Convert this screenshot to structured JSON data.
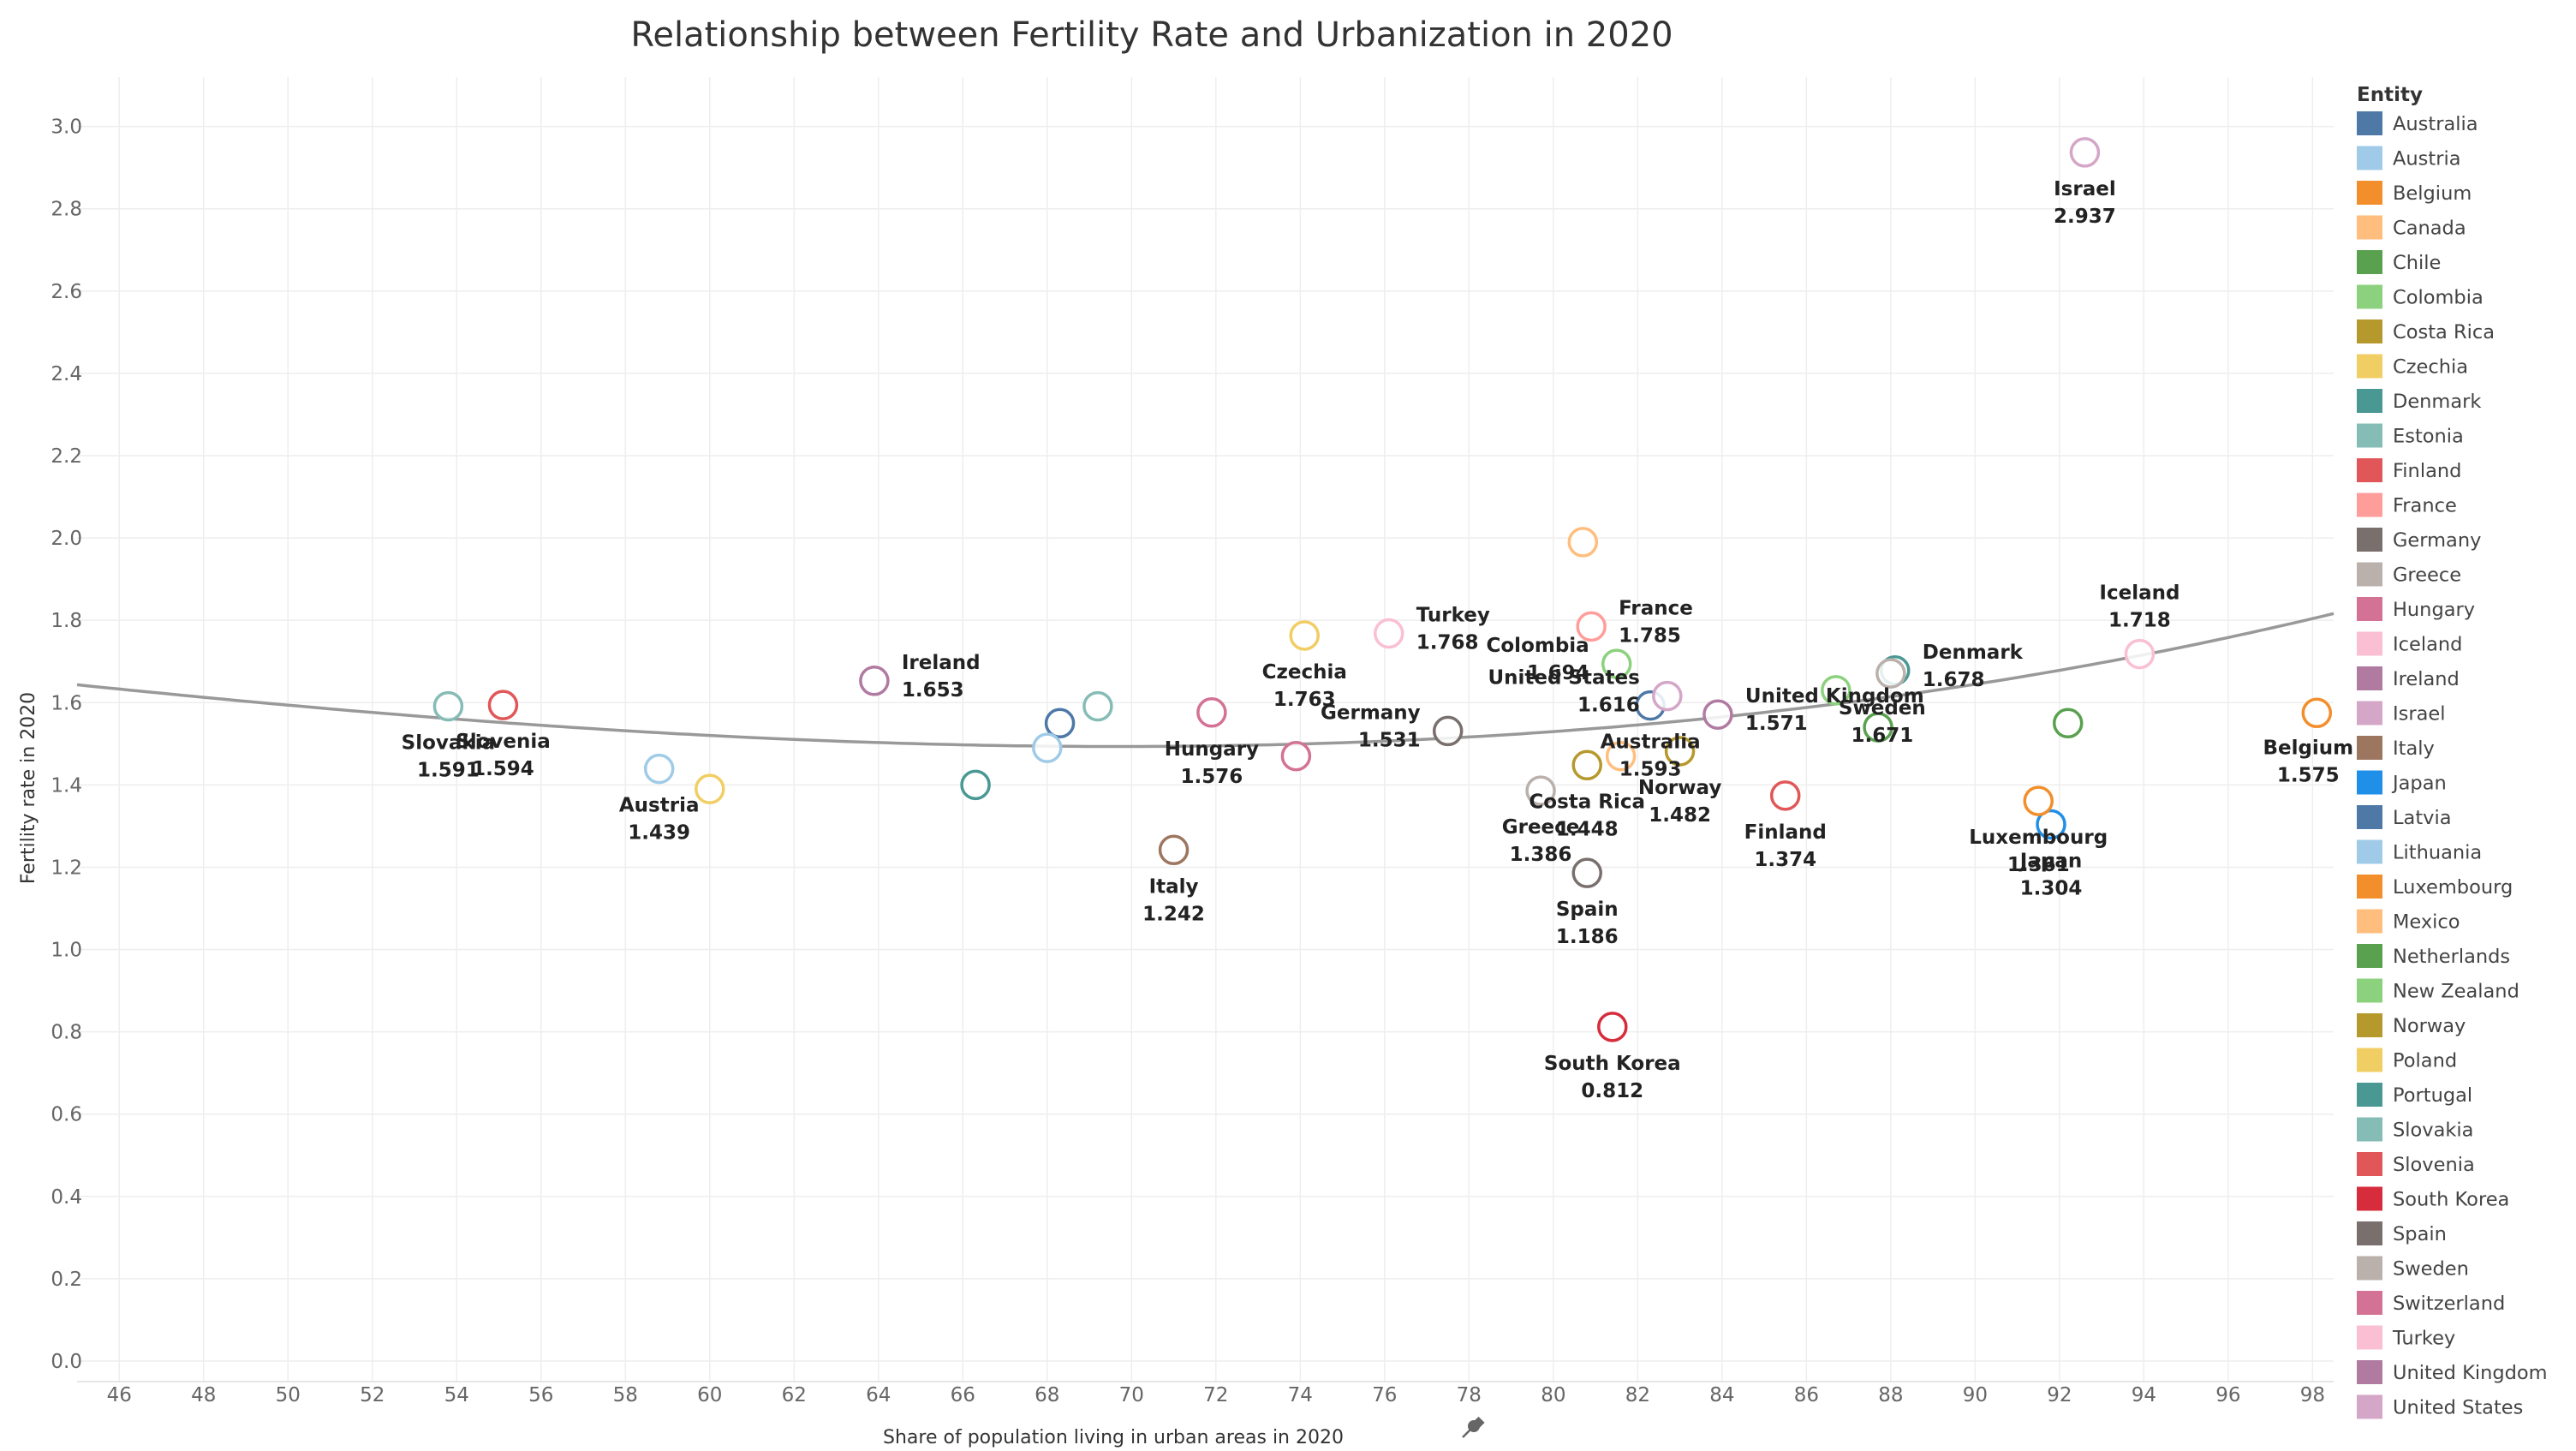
{
  "chart_data": {
    "type": "scatter",
    "title": "Relationship between Fertility Rate and Urbanization in 2020",
    "xlabel": "Share of population living in urban areas in 2020",
    "ylabel": "Fertility rate in 2020",
    "xlim": [
      45,
      98.5
    ],
    "ylim": [
      -0.05,
      3.12
    ],
    "xticks": [
      46,
      48,
      50,
      52,
      54,
      56,
      58,
      60,
      62,
      64,
      66,
      68,
      70,
      72,
      74,
      76,
      78,
      80,
      82,
      84,
      86,
      88,
      90,
      92,
      94,
      96,
      98
    ],
    "yticks": [
      0.0,
      0.2,
      0.4,
      0.6,
      0.8,
      1.0,
      1.2,
      1.4,
      1.6,
      1.8,
      2.0,
      2.2,
      2.4,
      2.6,
      2.8,
      3.0
    ],
    "grid": true,
    "trendline": {
      "type": "polynomial-cubic",
      "color": "#999999"
    },
    "legend": {
      "title": "Entity",
      "position": "right"
    },
    "points": [
      {
        "entity": "Australia",
        "x": 82.3,
        "y": 1.593,
        "color": "#4e79a7",
        "label": "Australia",
        "value_label": "1.593",
        "label_pos": "below"
      },
      {
        "entity": "Austria",
        "x": 58.8,
        "y": 1.439,
        "color": "#a0cbe8",
        "label": "Austria",
        "value_label": "1.439",
        "label_pos": "below"
      },
      {
        "entity": "Belgium",
        "x": 98.1,
        "y": 1.575,
        "color": "#f28e2b",
        "label": "Belgium",
        "value_label": "1.575",
        "label_pos": "below-left"
      },
      {
        "entity": "Canada",
        "x": 81.6,
        "y": 1.47,
        "color": "#ffbe7d",
        "label": "",
        "value_label": "",
        "label_pos": "none"
      },
      {
        "entity": "Chile",
        "x": 87.7,
        "y": 1.54,
        "color": "#59a14f",
        "label": "",
        "value_label": "",
        "label_pos": "none"
      },
      {
        "entity": "Colombia",
        "x": 81.5,
        "y": 1.694,
        "color": "#8cd17d",
        "label": "Colombia",
        "value_label": "1.694",
        "label_pos": "left"
      },
      {
        "entity": "Costa Rica",
        "x": 80.8,
        "y": 1.448,
        "color": "#b6992d",
        "label": "Costa Rica",
        "value_label": "1.448",
        "label_pos": "below"
      },
      {
        "entity": "Czechia",
        "x": 74.1,
        "y": 1.763,
        "color": "#f1ce63",
        "label": "Czechia",
        "value_label": "1.763",
        "label_pos": "below"
      },
      {
        "entity": "Denmark",
        "x": 88.1,
        "y": 1.678,
        "color": "#499894",
        "label": "Denmark",
        "value_label": "1.678",
        "label_pos": "right"
      },
      {
        "entity": "Estonia",
        "x": 69.2,
        "y": 1.591,
        "color": "#86bcb6",
        "label": "",
        "value_label": "",
        "label_pos": "none"
      },
      {
        "entity": "Finland",
        "x": 85.5,
        "y": 1.374,
        "color": "#e15759",
        "label": "Finland",
        "value_label": "1.374",
        "label_pos": "below"
      },
      {
        "entity": "France",
        "x": 80.9,
        "y": 1.785,
        "color": "#ff9d9a",
        "label": "France",
        "value_label": "1.785",
        "label_pos": "right"
      },
      {
        "entity": "Germany",
        "x": 77.5,
        "y": 1.531,
        "color": "#79706e",
        "label": "Germany",
        "value_label": "1.531",
        "label_pos": "left"
      },
      {
        "entity": "Greece",
        "x": 79.7,
        "y": 1.386,
        "color": "#bab0ac",
        "label": "Greece",
        "value_label": "1.386",
        "label_pos": "below"
      },
      {
        "entity": "Hungary",
        "x": 71.9,
        "y": 1.576,
        "color": "#d37295",
        "label": "Hungary",
        "value_label": "1.576",
        "label_pos": "below"
      },
      {
        "entity": "Iceland",
        "x": 93.9,
        "y": 1.718,
        "color": "#fabfd2",
        "label": "Iceland",
        "value_label": "1.718",
        "label_pos": "above"
      },
      {
        "entity": "Ireland",
        "x": 63.9,
        "y": 1.653,
        "color": "#b07aa1",
        "label": "Ireland",
        "value_label": "1.653",
        "label_pos": "right"
      },
      {
        "entity": "Israel",
        "x": 92.6,
        "y": 2.937,
        "color": "#d4a6c8",
        "label": "Israel",
        "value_label": "2.937",
        "label_pos": "below"
      },
      {
        "entity": "Italy",
        "x": 71.0,
        "y": 1.242,
        "color": "#9d7660",
        "label": "Italy",
        "value_label": "1.242",
        "label_pos": "below"
      },
      {
        "entity": "Japan",
        "x": 91.8,
        "y": 1.304,
        "color": "#1f8fe8",
        "label": "Japan",
        "value_label": "1.304",
        "label_pos": "below"
      },
      {
        "entity": "Latvia",
        "x": 68.3,
        "y": 1.55,
        "color": "#4e79a7",
        "label": "",
        "value_label": "",
        "label_pos": "none"
      },
      {
        "entity": "Lithuania",
        "x": 68.0,
        "y": 1.49,
        "color": "#a0cbe8",
        "label": "",
        "value_label": "",
        "label_pos": "none"
      },
      {
        "entity": "Luxembourg",
        "x": 91.5,
        "y": 1.361,
        "color": "#f28e2b",
        "label": "Luxembourg",
        "value_label": "1.361",
        "label_pos": "below"
      },
      {
        "entity": "Mexico",
        "x": 80.7,
        "y": 1.99,
        "color": "#ffbe7d",
        "label": "",
        "value_label": "",
        "label_pos": "none"
      },
      {
        "entity": "Netherlands",
        "x": 92.2,
        "y": 1.55,
        "color": "#59a14f",
        "label": "",
        "value_label": "",
        "label_pos": "none"
      },
      {
        "entity": "New Zealand",
        "x": 86.7,
        "y": 1.63,
        "color": "#8cd17d",
        "label": "",
        "value_label": "",
        "label_pos": "none"
      },
      {
        "entity": "Norway",
        "x": 83.0,
        "y": 1.482,
        "color": "#b6992d",
        "label": "Norway",
        "value_label": "1.482",
        "label_pos": "below"
      },
      {
        "entity": "Poland",
        "x": 60.0,
        "y": 1.39,
        "color": "#f1ce63",
        "label": "",
        "value_label": "",
        "label_pos": "none"
      },
      {
        "entity": "Portugal",
        "x": 66.3,
        "y": 1.4,
        "color": "#499894",
        "label": "",
        "value_label": "",
        "label_pos": "none"
      },
      {
        "entity": "Slovakia",
        "x": 53.8,
        "y": 1.591,
        "color": "#86bcb6",
        "label": "Slovakia",
        "value_label": "1.591",
        "label_pos": "below"
      },
      {
        "entity": "Slovenia",
        "x": 55.1,
        "y": 1.594,
        "color": "#e15759",
        "label": "Slovenia",
        "value_label": "1.594",
        "label_pos": "below"
      },
      {
        "entity": "South Korea",
        "x": 81.4,
        "y": 0.812,
        "color": "#d62c3c",
        "label": "South Korea",
        "value_label": "0.812",
        "label_pos": "below"
      },
      {
        "entity": "Spain",
        "x": 80.8,
        "y": 1.186,
        "color": "#79706e",
        "label": "Spain",
        "value_label": "1.186",
        "label_pos": "below"
      },
      {
        "entity": "Sweden",
        "x": 88.0,
        "y": 1.671,
        "color": "#bab0ac",
        "label": "Sweden",
        "value_label": "1.671",
        "label_pos": "below-left"
      },
      {
        "entity": "Switzerland",
        "x": 73.9,
        "y": 1.47,
        "color": "#d37295",
        "label": "",
        "value_label": "",
        "label_pos": "none"
      },
      {
        "entity": "Turkey",
        "x": 76.1,
        "y": 1.768,
        "color": "#fabfd2",
        "label": "Turkey",
        "value_label": "1.768",
        "label_pos": "right"
      },
      {
        "entity": "United Kingdom",
        "x": 83.9,
        "y": 1.571,
        "color": "#b07aa1",
        "label": "United Kingdom",
        "value_label": "1.571",
        "label_pos": "right"
      },
      {
        "entity": "United States",
        "x": 82.7,
        "y": 1.616,
        "color": "#d4a6c8",
        "label": "United States",
        "value_label": "1.616",
        "label_pos": "left"
      }
    ]
  },
  "legend_entries": [
    {
      "name": "Australia",
      "color": "#4e79a7"
    },
    {
      "name": "Austria",
      "color": "#a0cbe8"
    },
    {
      "name": "Belgium",
      "color": "#f28e2b"
    },
    {
      "name": "Canada",
      "color": "#ffbe7d"
    },
    {
      "name": "Chile",
      "color": "#59a14f"
    },
    {
      "name": "Colombia",
      "color": "#8cd17d"
    },
    {
      "name": "Costa Rica",
      "color": "#b6992d"
    },
    {
      "name": "Czechia",
      "color": "#f1ce63"
    },
    {
      "name": "Denmark",
      "color": "#499894"
    },
    {
      "name": "Estonia",
      "color": "#86bcb6"
    },
    {
      "name": "Finland",
      "color": "#e15759"
    },
    {
      "name": "France",
      "color": "#ff9d9a"
    },
    {
      "name": "Germany",
      "color": "#79706e"
    },
    {
      "name": "Greece",
      "color": "#bab0ac"
    },
    {
      "name": "Hungary",
      "color": "#d37295"
    },
    {
      "name": "Iceland",
      "color": "#fabfd2"
    },
    {
      "name": "Ireland",
      "color": "#b07aa1"
    },
    {
      "name": "Israel",
      "color": "#d4a6c8"
    },
    {
      "name": "Italy",
      "color": "#9d7660"
    },
    {
      "name": "Japan",
      "color": "#1f8fe8"
    },
    {
      "name": "Latvia",
      "color": "#4e79a7"
    },
    {
      "name": "Lithuania",
      "color": "#a0cbe8"
    },
    {
      "name": "Luxembourg",
      "color": "#f28e2b"
    },
    {
      "name": "Mexico",
      "color": "#ffbe7d"
    },
    {
      "name": "Netherlands",
      "color": "#59a14f"
    },
    {
      "name": "New Zealand",
      "color": "#8cd17d"
    },
    {
      "name": "Norway",
      "color": "#b6992d"
    },
    {
      "name": "Poland",
      "color": "#f1ce63"
    },
    {
      "name": "Portugal",
      "color": "#499894"
    },
    {
      "name": "Slovakia",
      "color": "#86bcb6"
    },
    {
      "name": "Slovenia",
      "color": "#e15759"
    },
    {
      "name": "South Korea",
      "color": "#d62c3c"
    },
    {
      "name": "Spain",
      "color": "#79706e"
    },
    {
      "name": "Sweden",
      "color": "#bab0ac"
    },
    {
      "name": "Switzerland",
      "color": "#d37295"
    },
    {
      "name": "Turkey",
      "color": "#fabfd2"
    },
    {
      "name": "United Kingdom",
      "color": "#b07aa1"
    },
    {
      "name": "United States",
      "color": "#d4a6c8"
    }
  ],
  "icons": {
    "xlabel_sort": "pin-icon"
  }
}
